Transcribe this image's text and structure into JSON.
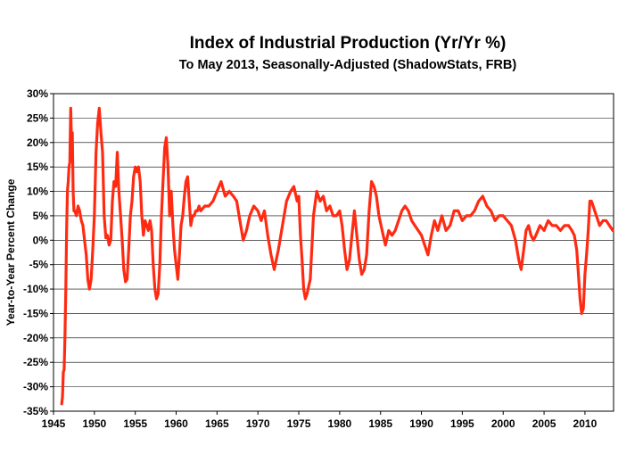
{
  "chart_data": {
    "type": "line",
    "title": "Index of Industrial Production (Yr/Yr %)",
    "subtitle": "To May 2013, Seasonally-Adjusted (ShadowStats, FRB)",
    "xlabel": "",
    "ylabel": "Year-to-Year Percent Change",
    "xlim": [
      1945,
      2013.5
    ],
    "ylim": [
      -35,
      30
    ],
    "x_ticks": [
      1945,
      1950,
      1955,
      1960,
      1965,
      1970,
      1975,
      1980,
      1985,
      1990,
      1995,
      2000,
      2005,
      2010
    ],
    "y_ticks": [
      30,
      25,
      20,
      15,
      10,
      5,
      0,
      -5,
      -10,
      -15,
      -20,
      -25,
      -30,
      -35
    ],
    "x_tick_labels": [
      "1945",
      "1950",
      "1955",
      "1960",
      "1965",
      "1970",
      "1975",
      "1980",
      "1985",
      "1990",
      "1995",
      "2000",
      "2005",
      "2010"
    ],
    "y_tick_labels": [
      "30%",
      "25%",
      "20%",
      "15%",
      "10%",
      "5%",
      "0%",
      "-5%",
      "-10%",
      "-15%",
      "-20%",
      "-25%",
      "-30%",
      "-35%"
    ],
    "grid": true,
    "legend": "none",
    "color": "#ff2a12",
    "series": [
      {
        "x": [
          1946.0,
          1946.1,
          1946.2,
          1946.3,
          1946.4,
          1946.5,
          1946.6,
          1946.7,
          1946.8,
          1946.9,
          1947.0,
          1947.1,
          1947.2,
          1947.3,
          1947.4,
          1947.5,
          1947.6,
          1947.8,
          1948.0,
          1948.2,
          1948.4,
          1948.6,
          1948.8,
          1949.0,
          1949.2,
          1949.4,
          1949.6,
          1949.8,
          1950.0,
          1950.2,
          1950.4,
          1950.6,
          1950.8,
          1951.0,
          1951.2,
          1951.4,
          1951.6,
          1951.8,
          1952.0,
          1952.2,
          1952.4,
          1952.6,
          1952.8,
          1953.0,
          1953.2,
          1953.4,
          1953.6,
          1953.8,
          1954.0,
          1954.2,
          1954.4,
          1954.6,
          1954.8,
          1955.0,
          1955.2,
          1955.4,
          1955.6,
          1955.8,
          1956.0,
          1956.2,
          1956.4,
          1956.6,
          1956.8,
          1957.0,
          1957.2,
          1957.4,
          1957.6,
          1957.8,
          1958.0,
          1958.2,
          1958.4,
          1958.6,
          1958.8,
          1959.0,
          1959.2,
          1959.4,
          1959.6,
          1959.8,
          1960.0,
          1960.2,
          1960.4,
          1960.6,
          1960.8,
          1961.0,
          1961.2,
          1961.4,
          1961.6,
          1961.8,
          1962.0,
          1962.2,
          1962.4,
          1962.6,
          1962.8,
          1963.0,
          1963.5,
          1964.0,
          1964.5,
          1965.0,
          1965.5,
          1966.0,
          1966.5,
          1967.0,
          1967.4,
          1967.8,
          1968.2,
          1968.6,
          1969.0,
          1969.5,
          1970.0,
          1970.4,
          1970.8,
          1971.2,
          1971.6,
          1972.0,
          1972.5,
          1973.0,
          1973.5,
          1974.0,
          1974.4,
          1974.8,
          1975.0,
          1975.2,
          1975.4,
          1975.6,
          1975.8,
          1976.0,
          1976.4,
          1976.8,
          1977.2,
          1977.6,
          1978.0,
          1978.4,
          1978.8,
          1979.2,
          1979.6,
          1980.0,
          1980.3,
          1980.6,
          1980.9,
          1981.2,
          1981.5,
          1981.8,
          1982.1,
          1982.4,
          1982.7,
          1983.0,
          1983.3,
          1983.6,
          1983.9,
          1984.2,
          1984.5,
          1984.8,
          1985.2,
          1985.6,
          1986.0,
          1986.4,
          1986.8,
          1987.2,
          1987.6,
          1988.0,
          1988.4,
          1988.8,
          1989.2,
          1989.6,
          1990.0,
          1990.4,
          1990.8,
          1991.2,
          1991.6,
          1992.0,
          1992.5,
          1993.0,
          1993.5,
          1994.0,
          1994.5,
          1995.0,
          1995.5,
          1996.0,
          1996.5,
          1997.0,
          1997.5,
          1998.0,
          1998.5,
          1999.0,
          1999.5,
          2000.0,
          2000.5,
          2001.0,
          2001.5,
          2001.9,
          2002.2,
          2002.5,
          2002.8,
          2003.1,
          2003.4,
          2003.7,
          2004.0,
          2004.5,
          2005.0,
          2005.5,
          2006.0,
          2006.5,
          2007.0,
          2007.5,
          2008.0,
          2008.4,
          2008.7,
          2009.0,
          2009.2,
          2009.4,
          2009.6,
          2009.8,
          2010.0,
          2010.2,
          2010.4,
          2010.6,
          2010.8,
          2011.0,
          2011.4,
          2011.8,
          2012.2,
          2012.6,
          2013.0,
          2013.4
        ],
        "y": [
          -33.5,
          -32,
          -27,
          -26.5,
          -20,
          -10,
          2,
          10,
          12,
          15,
          16,
          27,
          20,
          22,
          10,
          6,
          6,
          5,
          7,
          6,
          4,
          3,
          0,
          -3,
          -8,
          -10,
          -8,
          -2,
          5,
          18,
          24,
          27,
          22,
          18,
          5,
          0.5,
          1,
          -1,
          0,
          8,
          12,
          11,
          18,
          10,
          5,
          0,
          -6,
          -8.5,
          -8,
          -2,
          5,
          8,
          13,
          15,
          14,
          15,
          12,
          5,
          1,
          4,
          3,
          2,
          4,
          2,
          -5,
          -10,
          -12,
          -11,
          -5,
          5,
          12,
          19,
          21,
          15,
          5,
          10,
          3,
          -2,
          -5,
          -8,
          -3,
          3,
          5,
          9,
          12,
          13,
          8,
          3,
          5,
          5,
          6,
          6,
          7,
          6,
          7,
          7,
          8,
          10,
          12,
          9,
          10,
          9,
          8,
          4,
          0,
          2,
          5,
          7,
          6,
          4,
          6,
          1,
          -3,
          -6,
          -2,
          3,
          8,
          10,
          11,
          8,
          9,
          1,
          -4,
          -10,
          -12,
          -11,
          -8,
          5,
          10,
          8,
          9,
          6,
          7,
          5,
          5,
          6,
          3,
          -2,
          -6,
          -4,
          1,
          6,
          1,
          -4,
          -7,
          -6,
          -3,
          6,
          12,
          11,
          9,
          5,
          2,
          -1,
          2,
          1,
          2,
          4,
          6,
          7,
          6,
          4,
          3,
          2,
          1,
          -1,
          -3,
          1,
          4,
          2,
          5,
          2,
          3,
          6,
          6,
          4,
          5,
          5,
          6,
          8,
          9,
          7,
          6,
          4,
          5,
          5,
          4,
          3,
          0,
          -4,
          -6,
          -2,
          2,
          3,
          1,
          0,
          1,
          3,
          2,
          4,
          3,
          3,
          2,
          3,
          3,
          2,
          1,
          -2,
          -7,
          -12,
          -15,
          -14,
          -7,
          -3,
          2,
          8,
          8,
          7,
          5,
          3,
          4,
          4,
          3,
          2
        ]
      }
    ]
  }
}
